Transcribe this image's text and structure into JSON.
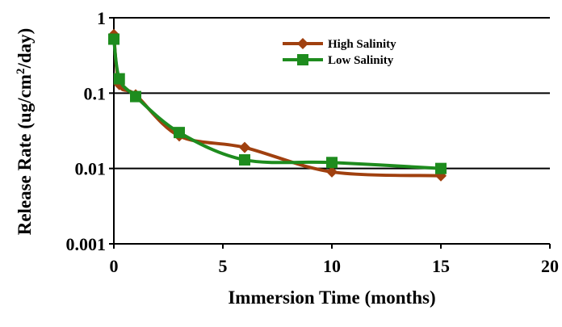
{
  "chart_data": {
    "type": "line",
    "title": "",
    "xlabel": "Immersion Time (months)",
    "ylabel": {
      "prefix": "Release Rate (ug/cm",
      "sup": "2",
      "suffix": "/day)"
    },
    "xlim": [
      0,
      20
    ],
    "ylim": [
      0.001,
      1
    ],
    "yscale": "log",
    "x_ticks": [
      "0",
      "5",
      "10",
      "15",
      "20"
    ],
    "y_ticks": [
      "0.001",
      "0.01",
      "0.1",
      "1"
    ],
    "grid": "horizontal major",
    "legend_position": "top-right",
    "series": [
      {
        "name": "High Salinity",
        "color": "#A0400F",
        "marker": "diamond",
        "x": [
          0,
          0.25,
          1,
          3,
          6,
          10,
          15
        ],
        "y": [
          0.6,
          0.13,
          0.095,
          0.027,
          0.019,
          0.009,
          0.008
        ]
      },
      {
        "name": "Low Salinity",
        "color": "#1E8C1E",
        "marker": "square",
        "x": [
          0,
          0.25,
          1,
          3,
          6,
          10,
          15
        ],
        "y": [
          0.52,
          0.155,
          0.09,
          0.03,
          0.013,
          0.012,
          0.01
        ]
      }
    ]
  }
}
